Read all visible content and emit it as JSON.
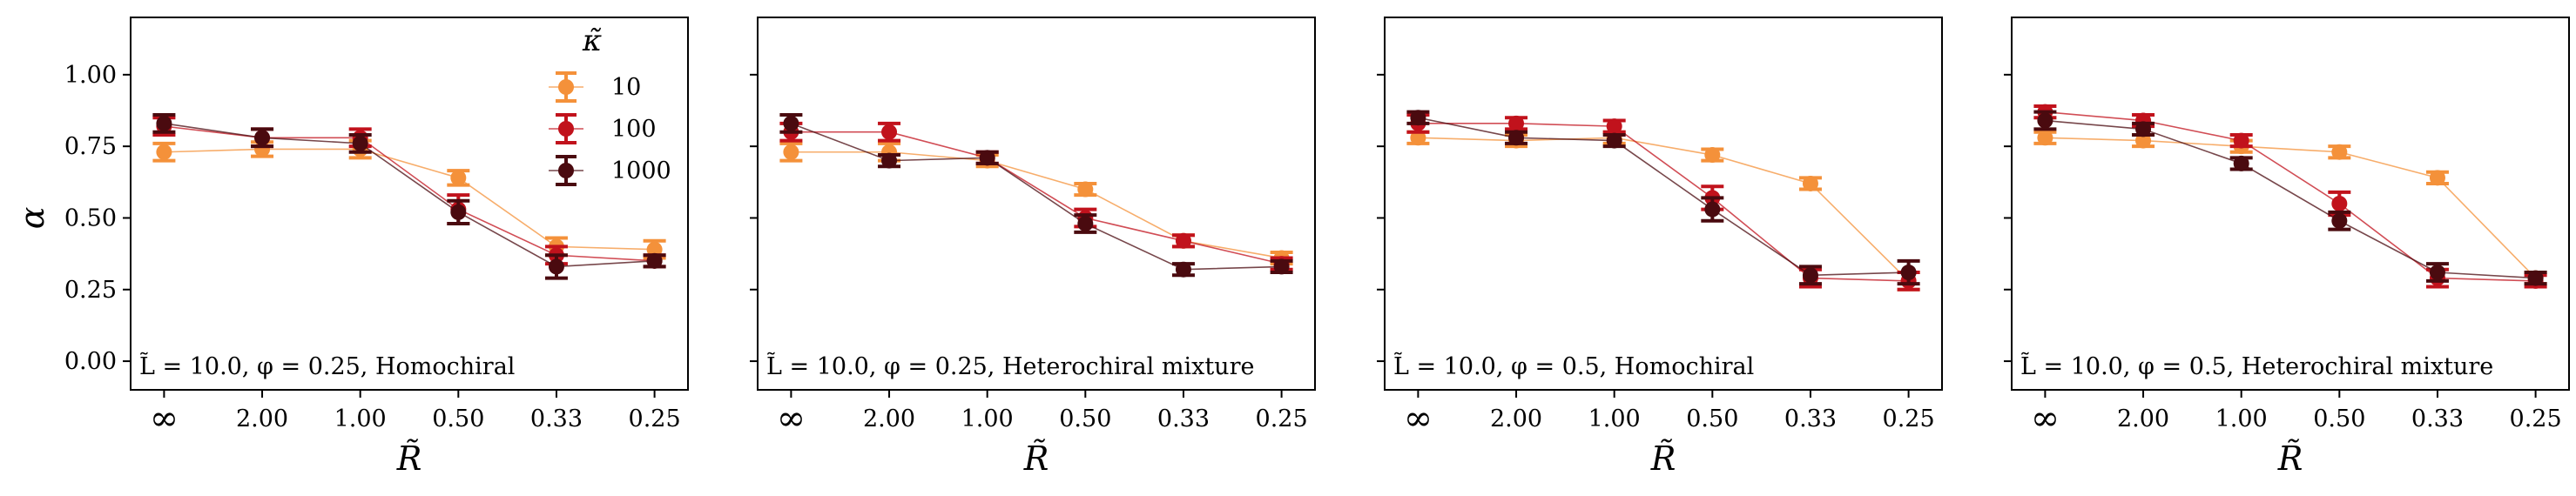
{
  "chart_data": {
    "type": "line",
    "shared": {
      "categories": [
        "∞",
        "2.00",
        "1.00",
        "0.50",
        "0.33",
        "0.25"
      ],
      "xlabel": "R̃",
      "ylabel": "α",
      "ylim": [
        -0.1,
        1.2
      ],
      "yticks": [
        0.0,
        0.25,
        0.5,
        0.75,
        1.0
      ],
      "yticklabels": [
        "0.00",
        "0.25",
        "0.50",
        "0.75",
        "1.00"
      ],
      "legend": {
        "title": "κ̃",
        "location": "top-right of first panel",
        "entries": [
          "10",
          "100",
          "1000"
        ]
      },
      "colors": {
        "10": "#f4913a",
        "100": "#c1121c",
        "1000": "#4a0a0f"
      }
    },
    "panels": [
      {
        "annotation": "L̃ = 10.0, φ = 0.25, Homochiral",
        "series": [
          {
            "name": "10",
            "values": [
              0.73,
              0.74,
              0.74,
              0.64,
              0.4,
              0.39
            ],
            "errors": [
              0.03,
              0.025,
              0.03,
              0.025,
              0.03,
              0.03
            ]
          },
          {
            "name": "100",
            "values": [
              0.82,
              0.78,
              0.78,
              0.53,
              0.37,
              0.35
            ],
            "errors": [
              0.03,
              0.03,
              0.03,
              0.05,
              0.03,
              0.02
            ]
          },
          {
            "name": "1000",
            "values": [
              0.83,
              0.78,
              0.76,
              0.52,
              0.33,
              0.35
            ],
            "errors": [
              0.03,
              0.03,
              0.03,
              0.04,
              0.04,
              0.02
            ]
          }
        ]
      },
      {
        "annotation": "L̃ = 10.0, φ = 0.25, Heterochiral mixture",
        "series": [
          {
            "name": "10",
            "values": [
              0.73,
              0.73,
              0.7,
              0.6,
              0.42,
              0.36
            ],
            "errors": [
              0.03,
              0.03,
              0.02,
              0.02,
              0.02,
              0.02
            ]
          },
          {
            "name": "100",
            "values": [
              0.8,
              0.8,
              0.71,
              0.5,
              0.42,
              0.34
            ],
            "errors": [
              0.03,
              0.03,
              0.02,
              0.03,
              0.02,
              0.02
            ]
          },
          {
            "name": "1000",
            "values": [
              0.83,
              0.7,
              0.71,
              0.48,
              0.32,
              0.33
            ],
            "errors": [
              0.03,
              0.02,
              0.02,
              0.03,
              0.02,
              0.02
            ]
          }
        ]
      },
      {
        "annotation": "L̃ = 10.0, φ = 0.5, Homochiral",
        "series": [
          {
            "name": "10",
            "values": [
              0.78,
              0.77,
              0.78,
              0.72,
              0.62,
              0.28
            ],
            "errors": [
              0.02,
              0.02,
              0.02,
              0.02,
              0.02,
              0.03
            ]
          },
          {
            "name": "100",
            "values": [
              0.83,
              0.83,
              0.82,
              0.57,
              0.29,
              0.28
            ],
            "errors": [
              0.03,
              0.02,
              0.02,
              0.04,
              0.03,
              0.03
            ]
          },
          {
            "name": "1000",
            "values": [
              0.85,
              0.78,
              0.77,
              0.53,
              0.3,
              0.31
            ],
            "errors": [
              0.02,
              0.02,
              0.02,
              0.04,
              0.03,
              0.04
            ]
          }
        ]
      },
      {
        "annotation": "L̃ = 10.0, φ = 0.5, Heterochiral mixture",
        "series": [
          {
            "name": "10",
            "values": [
              0.78,
              0.77,
              0.75,
              0.73,
              0.64,
              0.29
            ],
            "errors": [
              0.02,
              0.02,
              0.02,
              0.02,
              0.02,
              0.02
            ]
          },
          {
            "name": "100",
            "values": [
              0.87,
              0.84,
              0.77,
              0.55,
              0.29,
              0.28
            ],
            "errors": [
              0.02,
              0.02,
              0.02,
              0.04,
              0.03,
              0.02
            ]
          },
          {
            "name": "1000",
            "values": [
              0.84,
              0.81,
              0.69,
              0.49,
              0.31,
              0.29
            ],
            "errors": [
              0.03,
              0.02,
              0.02,
              0.03,
              0.03,
              0.02
            ]
          }
        ]
      }
    ]
  }
}
